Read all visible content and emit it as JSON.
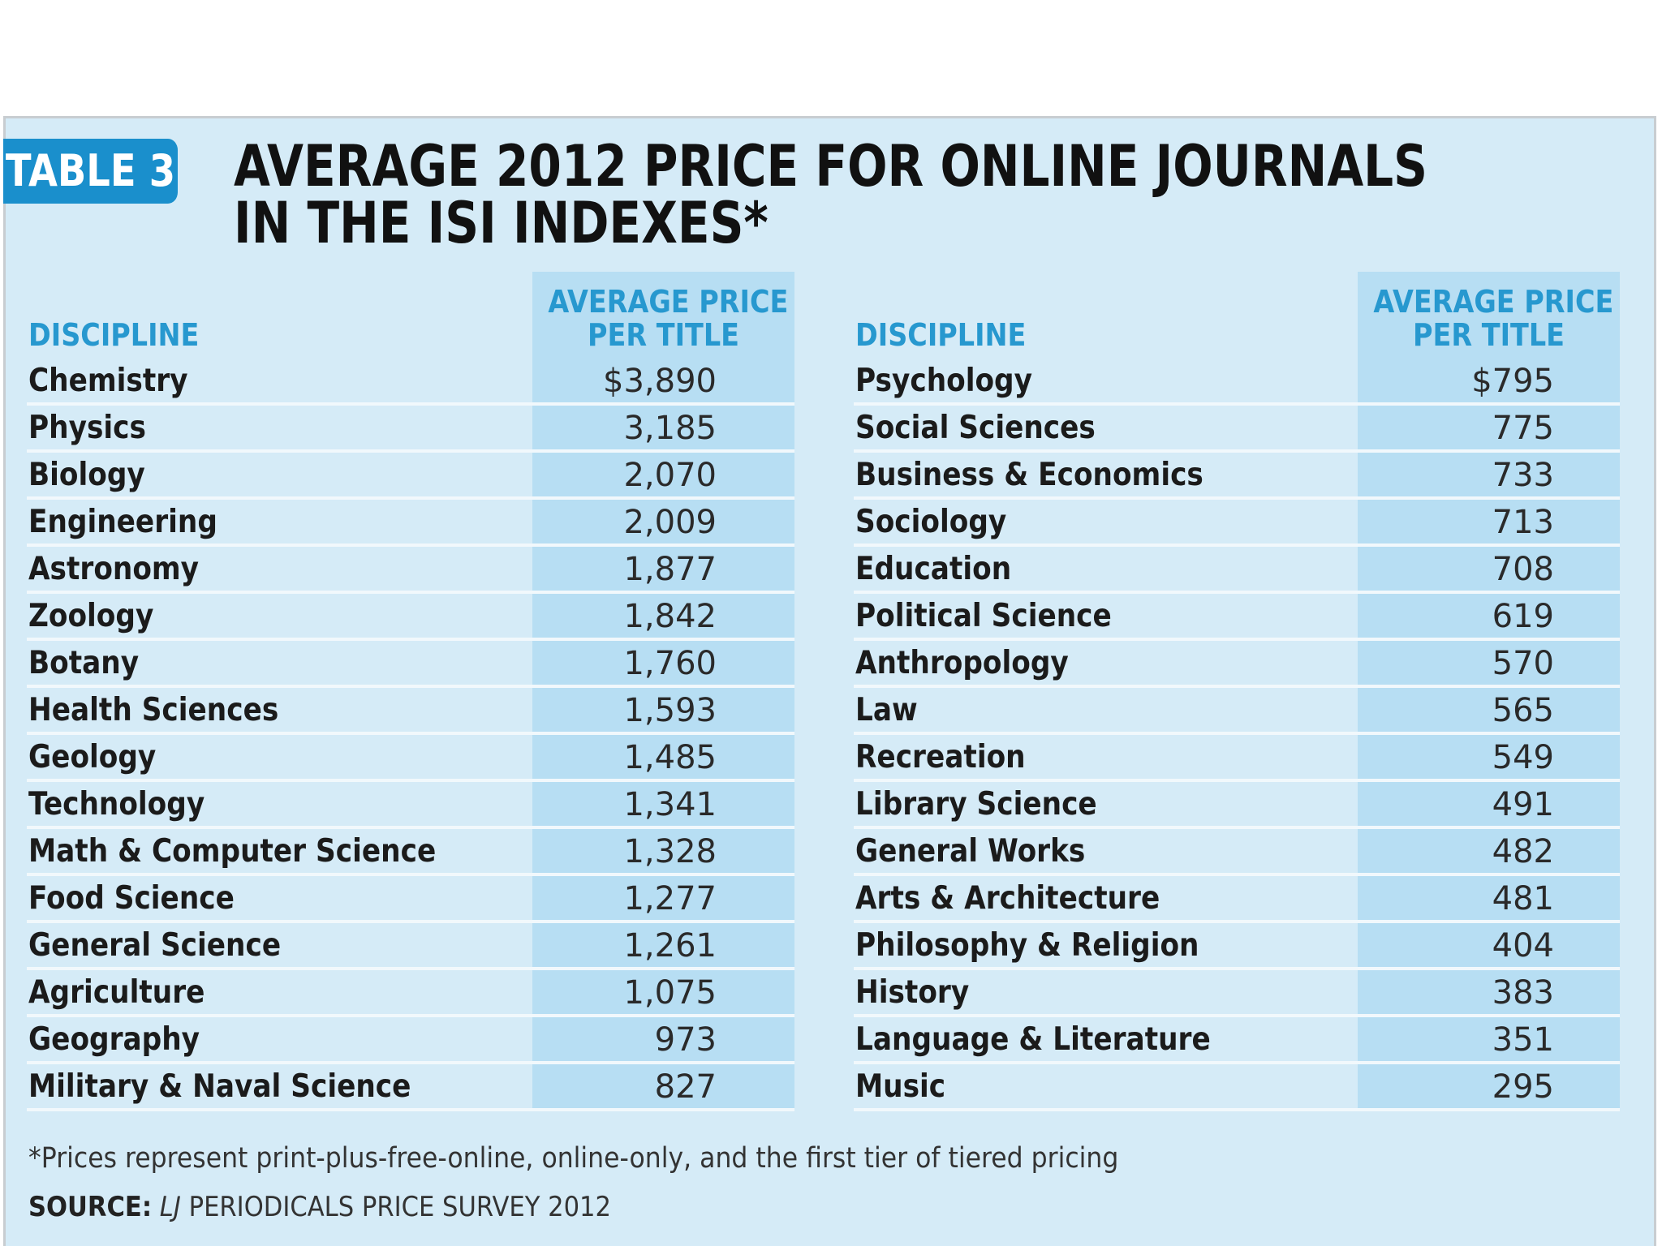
{
  "table": {
    "badge": "TABLE 3",
    "title_line1": "AVERAGE 2012 PRICE FOR ONLINE JOURNALS",
    "title_line2": "IN THE ISI INDEXES*",
    "discipline_header": "DISCIPLINE",
    "price_header_line1": "AVERAGE PRICE",
    "price_header_line2": "PER TITLE",
    "left_rows": [
      {
        "discipline": "Chemistry",
        "price": "$3,890"
      },
      {
        "discipline": "Physics",
        "price": "3,185"
      },
      {
        "discipline": "Biology",
        "price": "2,070"
      },
      {
        "discipline": "Engineering",
        "price": "2,009"
      },
      {
        "discipline": "Astronomy",
        "price": "1,877"
      },
      {
        "discipline": "Zoology",
        "price": "1,842"
      },
      {
        "discipline": "Botany",
        "price": "1,760"
      },
      {
        "discipline": "Health Sciences",
        "price": "1,593"
      },
      {
        "discipline": "Geology",
        "price": "1,485"
      },
      {
        "discipline": "Technology",
        "price": "1,341"
      },
      {
        "discipline": "Math & Computer Science",
        "price": "1,328"
      },
      {
        "discipline": "Food Science",
        "price": "1,277"
      },
      {
        "discipline": "General Science",
        "price": "1,261"
      },
      {
        "discipline": "Agriculture",
        "price": "1,075"
      },
      {
        "discipline": "Geography",
        "price": "973"
      },
      {
        "discipline": "Military & Naval Science",
        "price": "827"
      }
    ],
    "right_rows": [
      {
        "discipline": "Psychology",
        "price": "$795"
      },
      {
        "discipline": "Social Sciences",
        "price": "775"
      },
      {
        "discipline": "Business & Economics",
        "price": "733"
      },
      {
        "discipline": "Sociology",
        "price": "713"
      },
      {
        "discipline": "Education",
        "price": "708"
      },
      {
        "discipline": "Political Science",
        "price": "619"
      },
      {
        "discipline": "Anthropology",
        "price": "570"
      },
      {
        "discipline": "Law",
        "price": "565"
      },
      {
        "discipline": "Recreation",
        "price": "549"
      },
      {
        "discipline": "Library Science",
        "price": "491"
      },
      {
        "discipline": "General Works",
        "price": "482"
      },
      {
        "discipline": "Arts & Architecture",
        "price": "481"
      },
      {
        "discipline": "Philosophy & Religion",
        "price": "404"
      },
      {
        "discipline": "History",
        "price": "383"
      },
      {
        "discipline": "Language & Literature",
        "price": "351"
      },
      {
        "discipline": "Music",
        "price": "295"
      }
    ],
    "footnote": "*Prices represent print-plus-free-online, online-only, and the first tier of tiered pricing",
    "source_label": "SOURCE:",
    "source_publication": "LJ",
    "source_text": "PERIODICALS PRICE SURVEY 2012"
  },
  "colors": {
    "panel_background": "#d5ebf7",
    "price_column_band": "#b7def3",
    "badge_background": "#1a8fcc",
    "header_text": "#2798cf",
    "body_text": "#1b1b1b"
  }
}
